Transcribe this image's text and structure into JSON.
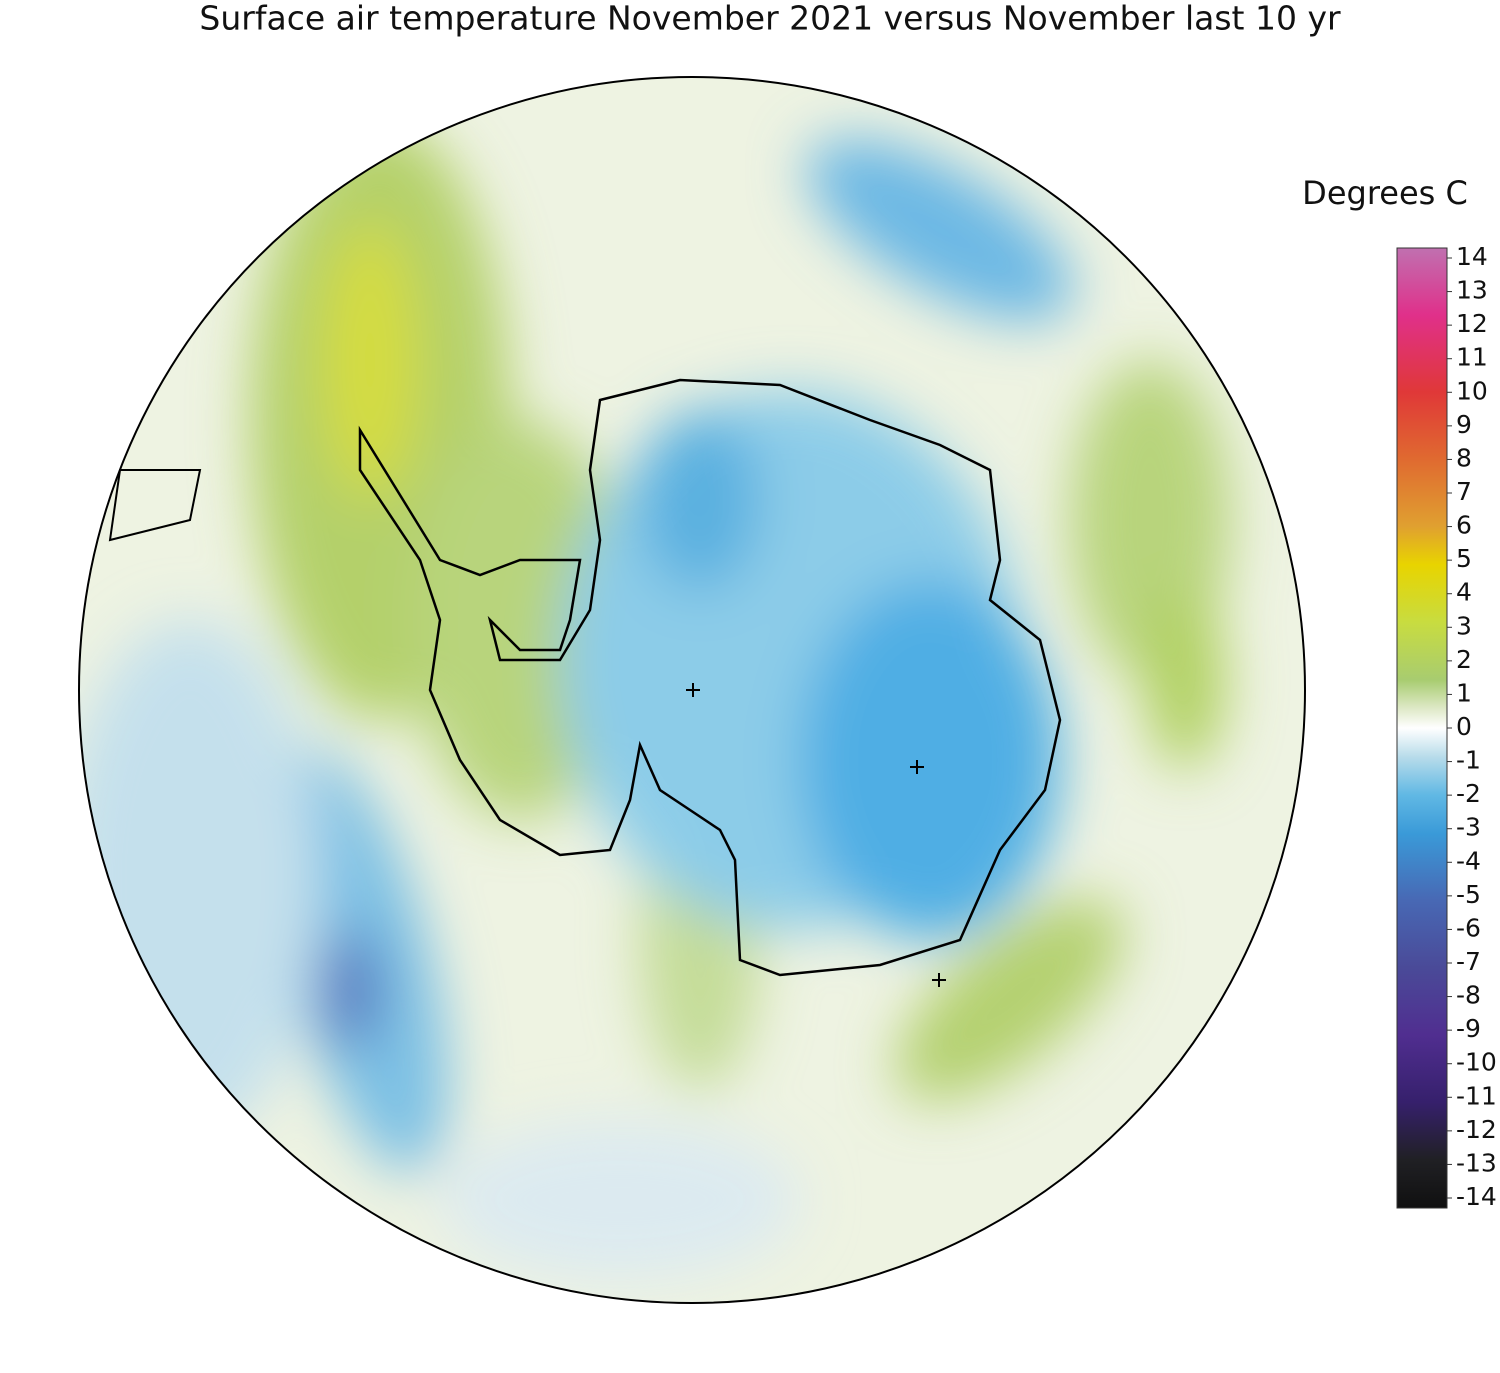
{
  "title": "Surface air temperature November 2021 versus November last 10 yr",
  "colorbar": {
    "label": "Degrees C",
    "lim": [
      -14,
      14
    ],
    "ticks": [
      14,
      13,
      12,
      11,
      10,
      9,
      8,
      7,
      6,
      5,
      4,
      3,
      2,
      1,
      0,
      -1,
      -2,
      -3,
      -4,
      -5,
      -6,
      -7,
      -8,
      -9,
      -10,
      -11,
      -12,
      -13,
      -14
    ]
  }
}
